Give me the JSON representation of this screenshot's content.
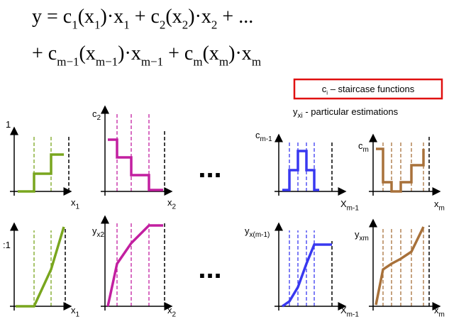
{
  "formula": {
    "line1": [
      {
        "text": "y = c",
        "sub": "1"
      },
      {
        "text": "(x",
        "sub": "1"
      },
      {
        "text": ")·x",
        "sub": "1"
      },
      {
        "text": " + c",
        "sub": "2"
      },
      {
        "text": "(x",
        "sub": "2"
      },
      {
        "text": ")·x",
        "sub": "2"
      },
      {
        "text": " + ..."
      }
    ],
    "line2": [
      {
        "text": "+ c",
        "sub": "m−1"
      },
      {
        "text": "(x",
        "sub": "m−1"
      },
      {
        "text": ")·x",
        "sub": "m−1"
      },
      {
        "text": " + c",
        "sub": "m"
      },
      {
        "text": "(x",
        "sub": "m"
      },
      {
        "text": ")·x",
        "sub": "m"
      }
    ]
  },
  "legend": {
    "staircase": [
      {
        "text": "c",
        "sub": "i"
      },
      {
        "text": " – staircase functions"
      }
    ],
    "estimations": [
      {
        "text": "y",
        "sub": "xi"
      },
      {
        "text": " -   particular estimations"
      }
    ]
  },
  "panels": [
    {
      "y_label": [
        {
          "text": "1"
        }
      ],
      "x_label": [
        {
          "text": "x",
          "sub": "1"
        }
      ]
    },
    {
      "y_label": [
        {
          "text": "c",
          "sub": "2"
        }
      ],
      "x_label": [
        {
          "text": "x",
          "sub": "2"
        }
      ]
    },
    {
      "y_label": [
        {
          "text": "c",
          "sub": "m-1"
        }
      ],
      "x_label": [
        {
          "text": "X",
          "sub": "m-1"
        }
      ]
    },
    {
      "y_label": [
        {
          "text": "c",
          "sub": "m"
        }
      ],
      "x_label": [
        {
          "text": "x",
          "sub": "m"
        }
      ]
    },
    {
      "y_label": [
        {
          "text": ":1"
        }
      ],
      "x_label": [
        {
          "text": "x",
          "sub": "1"
        }
      ]
    },
    {
      "y_label": [
        {
          "text": "y",
          "sub": "x2"
        }
      ],
      "x_label": [
        {
          "text": "x",
          "sub": "2"
        }
      ]
    },
    {
      "y_label": [
        {
          "text": "y",
          "sub": "x(m-1)"
        }
      ],
      "x_label": [
        {
          "text": "X",
          "sub": "m-1"
        }
      ]
    },
    {
      "y_label": [
        {
          "text": "y",
          "sub": "xm"
        }
      ],
      "x_label": [
        {
          "text": "x",
          "sub": "m"
        }
      ]
    }
  ],
  "ellipsis": [
    "...",
    "..."
  ]
}
